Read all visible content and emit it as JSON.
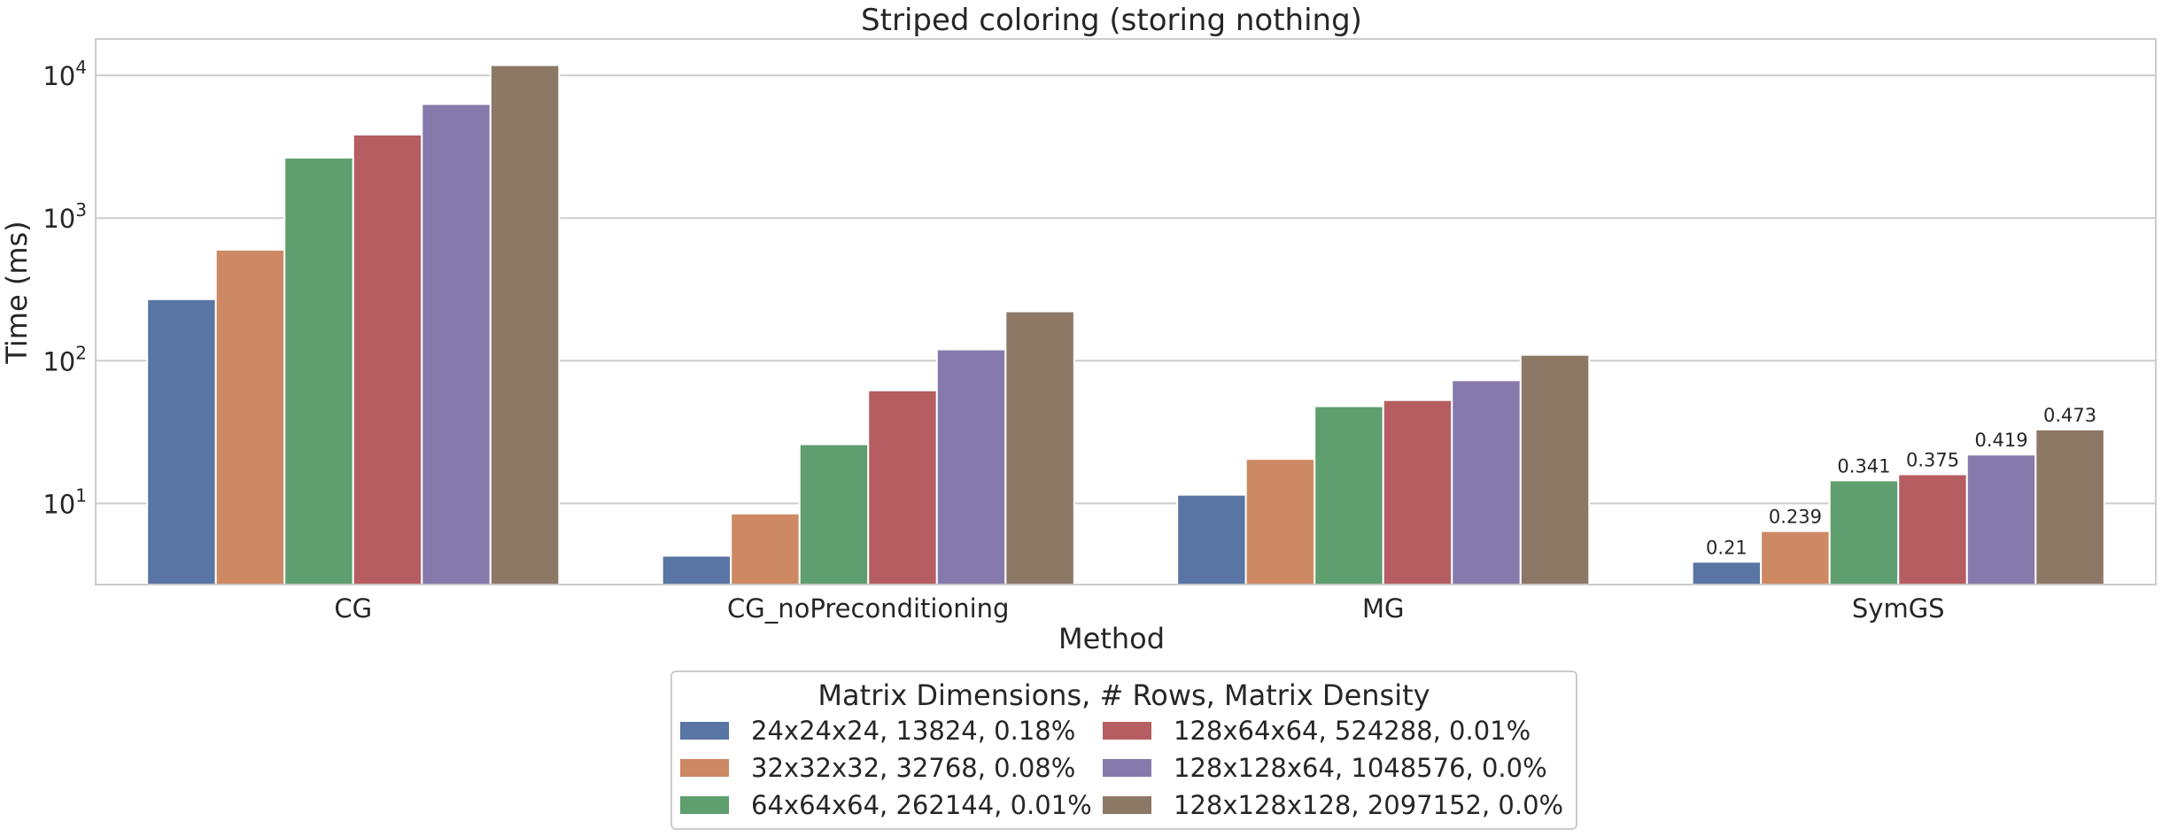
{
  "chart_data": {
    "type": "bar",
    "title": "Striped coloring (storing nothing)",
    "xlabel": "Method",
    "ylabel": "Time (ms)",
    "yscale": "log",
    "ylim": [
      2.7,
      18000
    ],
    "yticks": [
      10,
      100,
      1000,
      10000
    ],
    "ytick_labels": [
      {
        "base": "10",
        "exp": "1"
      },
      {
        "base": "10",
        "exp": "2"
      },
      {
        "base": "10",
        "exp": "3"
      },
      {
        "base": "10",
        "exp": "4"
      }
    ],
    "grid": true,
    "categories": [
      "CG",
      "CG_noPreconditioning",
      "MG",
      "SymGS"
    ],
    "legend": {
      "title": "Matrix Dimensions, # Rows, Matrix Density",
      "placement": "bottom-center",
      "columns": 2
    },
    "series": [
      {
        "name": "24x24x24, 13824, 0.18%",
        "color": "#5975a4",
        "values": [
          270,
          4.3,
          11.5,
          3.9
        ]
      },
      {
        "name": "32x32x32, 32768, 0.08%",
        "color": "#cc8963",
        "values": [
          600,
          8.5,
          20.5,
          6.4
        ]
      },
      {
        "name": "64x64x64, 262144, 0.01%",
        "color": "#5f9e6e",
        "values": [
          2650,
          26,
          48,
          14.5
        ]
      },
      {
        "name": "128x64x64, 524288, 0.01%",
        "color": "#b55d60",
        "values": [
          3850,
          62,
          53,
          16
        ]
      },
      {
        "name": "128x128x64, 1048576, 0.0%",
        "color": "#857aab",
        "values": [
          6300,
          120,
          73,
          22
        ]
      },
      {
        "name": "128x128x128, 2097152, 0.0%",
        "color": "#8d7866",
        "values": [
          11800,
          222,
          110,
          33
        ]
      }
    ],
    "annotations": [
      {
        "category": "SymGS",
        "series": 0,
        "text": "0.21"
      },
      {
        "category": "SymGS",
        "series": 1,
        "text": "0.239"
      },
      {
        "category": "SymGS",
        "series": 2,
        "text": "0.341"
      },
      {
        "category": "SymGS",
        "series": 3,
        "text": "0.375"
      },
      {
        "category": "SymGS",
        "series": 4,
        "text": "0.419"
      },
      {
        "category": "SymGS",
        "series": 5,
        "text": "0.473"
      }
    ]
  }
}
